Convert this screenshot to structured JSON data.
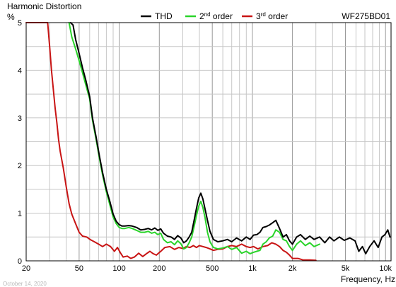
{
  "chart_data": {
    "type": "line",
    "title": "Harmonic Distortion",
    "ylabel": "%",
    "xlabel": "Frequency, Hz",
    "model": "WF275BD01",
    "date": "October 14, 2020",
    "x_scale": "log",
    "xlim": [
      20,
      11000
    ],
    "ylim": [
      0,
      5
    ],
    "grid": true,
    "x_ticks": [
      {
        "v": 20,
        "label": "20"
      },
      {
        "v": 50,
        "label": "50"
      },
      {
        "v": 100,
        "label": "100"
      },
      {
        "v": 200,
        "label": "200"
      },
      {
        "v": 500,
        "label": "500"
      },
      {
        "v": 1000,
        "label": "1k"
      },
      {
        "v": 2000,
        "label": "2k"
      },
      {
        "v": 5000,
        "label": "5k"
      },
      {
        "v": 10000,
        "label": "10k"
      }
    ],
    "y_ticks": [
      {
        "v": 0,
        "label": "0"
      },
      {
        "v": 1,
        "label": "1"
      },
      {
        "v": 2,
        "label": "2"
      },
      {
        "v": 3,
        "label": "3"
      },
      {
        "v": 4,
        "label": "4"
      },
      {
        "v": 5,
        "label": "5"
      }
    ],
    "legend": [
      {
        "label": "THD",
        "sup": "",
        "rest": "",
        "color": "#000000"
      },
      {
        "label": "2",
        "sup": "nd",
        "rest": " order",
        "color": "#2ad42a"
      },
      {
        "label": "3",
        "sup": "rd",
        "rest": " order",
        "color": "#c81414"
      }
    ],
    "series": [
      {
        "name": "THD",
        "color": "#000000",
        "points": [
          [
            43,
            5
          ],
          [
            45,
            4.95
          ],
          [
            47,
            4.65
          ],
          [
            50,
            4.35
          ],
          [
            53,
            4.05
          ],
          [
            56,
            3.8
          ],
          [
            60,
            3.45
          ],
          [
            63,
            3.0
          ],
          [
            67,
            2.6
          ],
          [
            71,
            2.2
          ],
          [
            75,
            1.85
          ],
          [
            80,
            1.5
          ],
          [
            85,
            1.25
          ],
          [
            90,
            0.98
          ],
          [
            95,
            0.83
          ],
          [
            100,
            0.76
          ],
          [
            105,
            0.73
          ],
          [
            110,
            0.73
          ],
          [
            118,
            0.74
          ],
          [
            125,
            0.73
          ],
          [
            135,
            0.7
          ],
          [
            145,
            0.65
          ],
          [
            155,
            0.66
          ],
          [
            165,
            0.68
          ],
          [
            175,
            0.65
          ],
          [
            185,
            0.69
          ],
          [
            195,
            0.64
          ],
          [
            205,
            0.67
          ],
          [
            215,
            0.58
          ],
          [
            230,
            0.52
          ],
          [
            245,
            0.5
          ],
          [
            260,
            0.45
          ],
          [
            275,
            0.53
          ],
          [
            290,
            0.48
          ],
          [
            305,
            0.38
          ],
          [
            320,
            0.42
          ],
          [
            335,
            0.5
          ],
          [
            350,
            0.6
          ],
          [
            365,
            0.85
          ],
          [
            380,
            1.1
          ],
          [
            395,
            1.32
          ],
          [
            410,
            1.42
          ],
          [
            425,
            1.3
          ],
          [
            440,
            1.1
          ],
          [
            460,
            0.85
          ],
          [
            480,
            0.62
          ],
          [
            510,
            0.45
          ],
          [
            550,
            0.4
          ],
          [
            600,
            0.42
          ],
          [
            650,
            0.45
          ],
          [
            700,
            0.4
          ],
          [
            760,
            0.48
          ],
          [
            830,
            0.42
          ],
          [
            900,
            0.5
          ],
          [
            960,
            0.45
          ],
          [
            1020,
            0.54
          ],
          [
            1080,
            0.55
          ],
          [
            1140,
            0.6
          ],
          [
            1200,
            0.7
          ],
          [
            1270,
            0.72
          ],
          [
            1340,
            0.75
          ],
          [
            1420,
            0.8
          ],
          [
            1500,
            0.85
          ],
          [
            1600,
            0.68
          ],
          [
            1700,
            0.5
          ],
          [
            1800,
            0.55
          ],
          [
            1900,
            0.42
          ],
          [
            2000,
            0.35
          ],
          [
            2150,
            0.5
          ],
          [
            2300,
            0.55
          ],
          [
            2500,
            0.45
          ],
          [
            2700,
            0.52
          ],
          [
            2900,
            0.45
          ],
          [
            3200,
            0.5
          ],
          [
            3500,
            0.38
          ],
          [
            3800,
            0.5
          ],
          [
            4100,
            0.42
          ],
          [
            4500,
            0.5
          ],
          [
            4900,
            0.43
          ],
          [
            5400,
            0.48
          ],
          [
            5900,
            0.42
          ],
          [
            6300,
            0.2
          ],
          [
            6700,
            0.3
          ],
          [
            7100,
            0.15
          ],
          [
            7600,
            0.3
          ],
          [
            8200,
            0.42
          ],
          [
            8800,
            0.28
          ],
          [
            9400,
            0.5
          ],
          [
            9900,
            0.55
          ],
          [
            10400,
            0.65
          ],
          [
            10800,
            0.5
          ]
        ]
      },
      {
        "name": "2nd order",
        "color": "#2ad42a",
        "points": [
          [
            42,
            5
          ],
          [
            44,
            4.7
          ],
          [
            47,
            4.45
          ],
          [
            50,
            4.2
          ],
          [
            53,
            3.95
          ],
          [
            56,
            3.7
          ],
          [
            60,
            3.4
          ],
          [
            63,
            2.95
          ],
          [
            67,
            2.55
          ],
          [
            71,
            2.15
          ],
          [
            75,
            1.8
          ],
          [
            80,
            1.45
          ],
          [
            85,
            1.18
          ],
          [
            90,
            0.92
          ],
          [
            95,
            0.78
          ],
          [
            100,
            0.7
          ],
          [
            105,
            0.68
          ],
          [
            110,
            0.68
          ],
          [
            118,
            0.7
          ],
          [
            125,
            0.68
          ],
          [
            135,
            0.64
          ],
          [
            145,
            0.6
          ],
          [
            155,
            0.6
          ],
          [
            165,
            0.62
          ],
          [
            175,
            0.58
          ],
          [
            185,
            0.6
          ],
          [
            195,
            0.55
          ],
          [
            205,
            0.58
          ],
          [
            215,
            0.45
          ],
          [
            230,
            0.38
          ],
          [
            245,
            0.4
          ],
          [
            260,
            0.34
          ],
          [
            275,
            0.42
          ],
          [
            290,
            0.36
          ],
          [
            305,
            0.25
          ],
          [
            320,
            0.28
          ],
          [
            335,
            0.38
          ],
          [
            350,
            0.5
          ],
          [
            365,
            0.72
          ],
          [
            380,
            0.95
          ],
          [
            395,
            1.15
          ],
          [
            410,
            1.25
          ],
          [
            425,
            1.12
          ],
          [
            440,
            0.92
          ],
          [
            460,
            0.6
          ],
          [
            480,
            0.4
          ],
          [
            510,
            0.28
          ],
          [
            550,
            0.25
          ],
          [
            600,
            0.27
          ],
          [
            650,
            0.3
          ],
          [
            700,
            0.24
          ],
          [
            760,
            0.28
          ],
          [
            830,
            0.16
          ],
          [
            900,
            0.2
          ],
          [
            960,
            0.15
          ],
          [
            1020,
            0.18
          ],
          [
            1080,
            0.2
          ],
          [
            1140,
            0.22
          ],
          [
            1200,
            0.35
          ],
          [
            1270,
            0.4
          ],
          [
            1340,
            0.48
          ],
          [
            1420,
            0.52
          ],
          [
            1500,
            0.65
          ],
          [
            1600,
            0.6
          ],
          [
            1700,
            0.45
          ],
          [
            1800,
            0.42
          ],
          [
            1900,
            0.3
          ],
          [
            2000,
            0.22
          ],
          [
            2150,
            0.35
          ],
          [
            2300,
            0.42
          ],
          [
            2500,
            0.32
          ],
          [
            2700,
            0.38
          ],
          [
            2900,
            0.3
          ],
          [
            3200,
            0.35
          ]
        ]
      },
      {
        "name": "3rd order",
        "color": "#c81414",
        "points": [
          [
            20,
            5
          ],
          [
            26,
            5
          ],
          [
            29,
            5
          ],
          [
            30,
            4.5
          ],
          [
            31,
            4.0
          ],
          [
            32,
            3.6
          ],
          [
            33,
            3.2
          ],
          [
            34,
            2.9
          ],
          [
            35,
            2.55
          ],
          [
            36,
            2.3
          ],
          [
            38,
            1.95
          ],
          [
            40,
            1.55
          ],
          [
            42,
            1.2
          ],
          [
            44,
            0.98
          ],
          [
            47,
            0.78
          ],
          [
            50,
            0.6
          ],
          [
            53,
            0.52
          ],
          [
            57,
            0.5
          ],
          [
            61,
            0.44
          ],
          [
            65,
            0.4
          ],
          [
            70,
            0.35
          ],
          [
            75,
            0.3
          ],
          [
            80,
            0.35
          ],
          [
            86,
            0.3
          ],
          [
            92,
            0.2
          ],
          [
            97,
            0.28
          ],
          [
            102,
            0.17
          ],
          [
            107,
            0.08
          ],
          [
            115,
            0.1
          ],
          [
            122,
            0.05
          ],
          [
            130,
            0.08
          ],
          [
            140,
            0.16
          ],
          [
            150,
            0.09
          ],
          [
            160,
            0.15
          ],
          [
            170,
            0.2
          ],
          [
            180,
            0.15
          ],
          [
            190,
            0.12
          ],
          [
            205,
            0.2
          ],
          [
            220,
            0.28
          ],
          [
            240,
            0.3
          ],
          [
            260,
            0.24
          ],
          [
            280,
            0.28
          ],
          [
            300,
            0.26
          ],
          [
            320,
            0.3
          ],
          [
            340,
            0.28
          ],
          [
            360,
            0.32
          ],
          [
            380,
            0.28
          ],
          [
            400,
            0.32
          ],
          [
            425,
            0.3
          ],
          [
            450,
            0.28
          ],
          [
            480,
            0.25
          ],
          [
            510,
            0.22
          ],
          [
            550,
            0.24
          ],
          [
            600,
            0.25
          ],
          [
            650,
            0.3
          ],
          [
            700,
            0.32
          ],
          [
            760,
            0.3
          ],
          [
            830,
            0.35
          ],
          [
            900,
            0.3
          ],
          [
            960,
            0.28
          ],
          [
            1020,
            0.3
          ],
          [
            1100,
            0.25
          ],
          [
            1200,
            0.3
          ],
          [
            1300,
            0.32
          ],
          [
            1400,
            0.38
          ],
          [
            1500,
            0.35
          ],
          [
            1600,
            0.3
          ],
          [
            1700,
            0.22
          ],
          [
            1800,
            0.18
          ],
          [
            1900,
            0.12
          ],
          [
            2000,
            0.05
          ],
          [
            2200,
            0.05
          ],
          [
            2400,
            0.02
          ],
          [
            2700,
            0.02
          ],
          [
            3000,
            0.01
          ]
        ]
      }
    ]
  }
}
